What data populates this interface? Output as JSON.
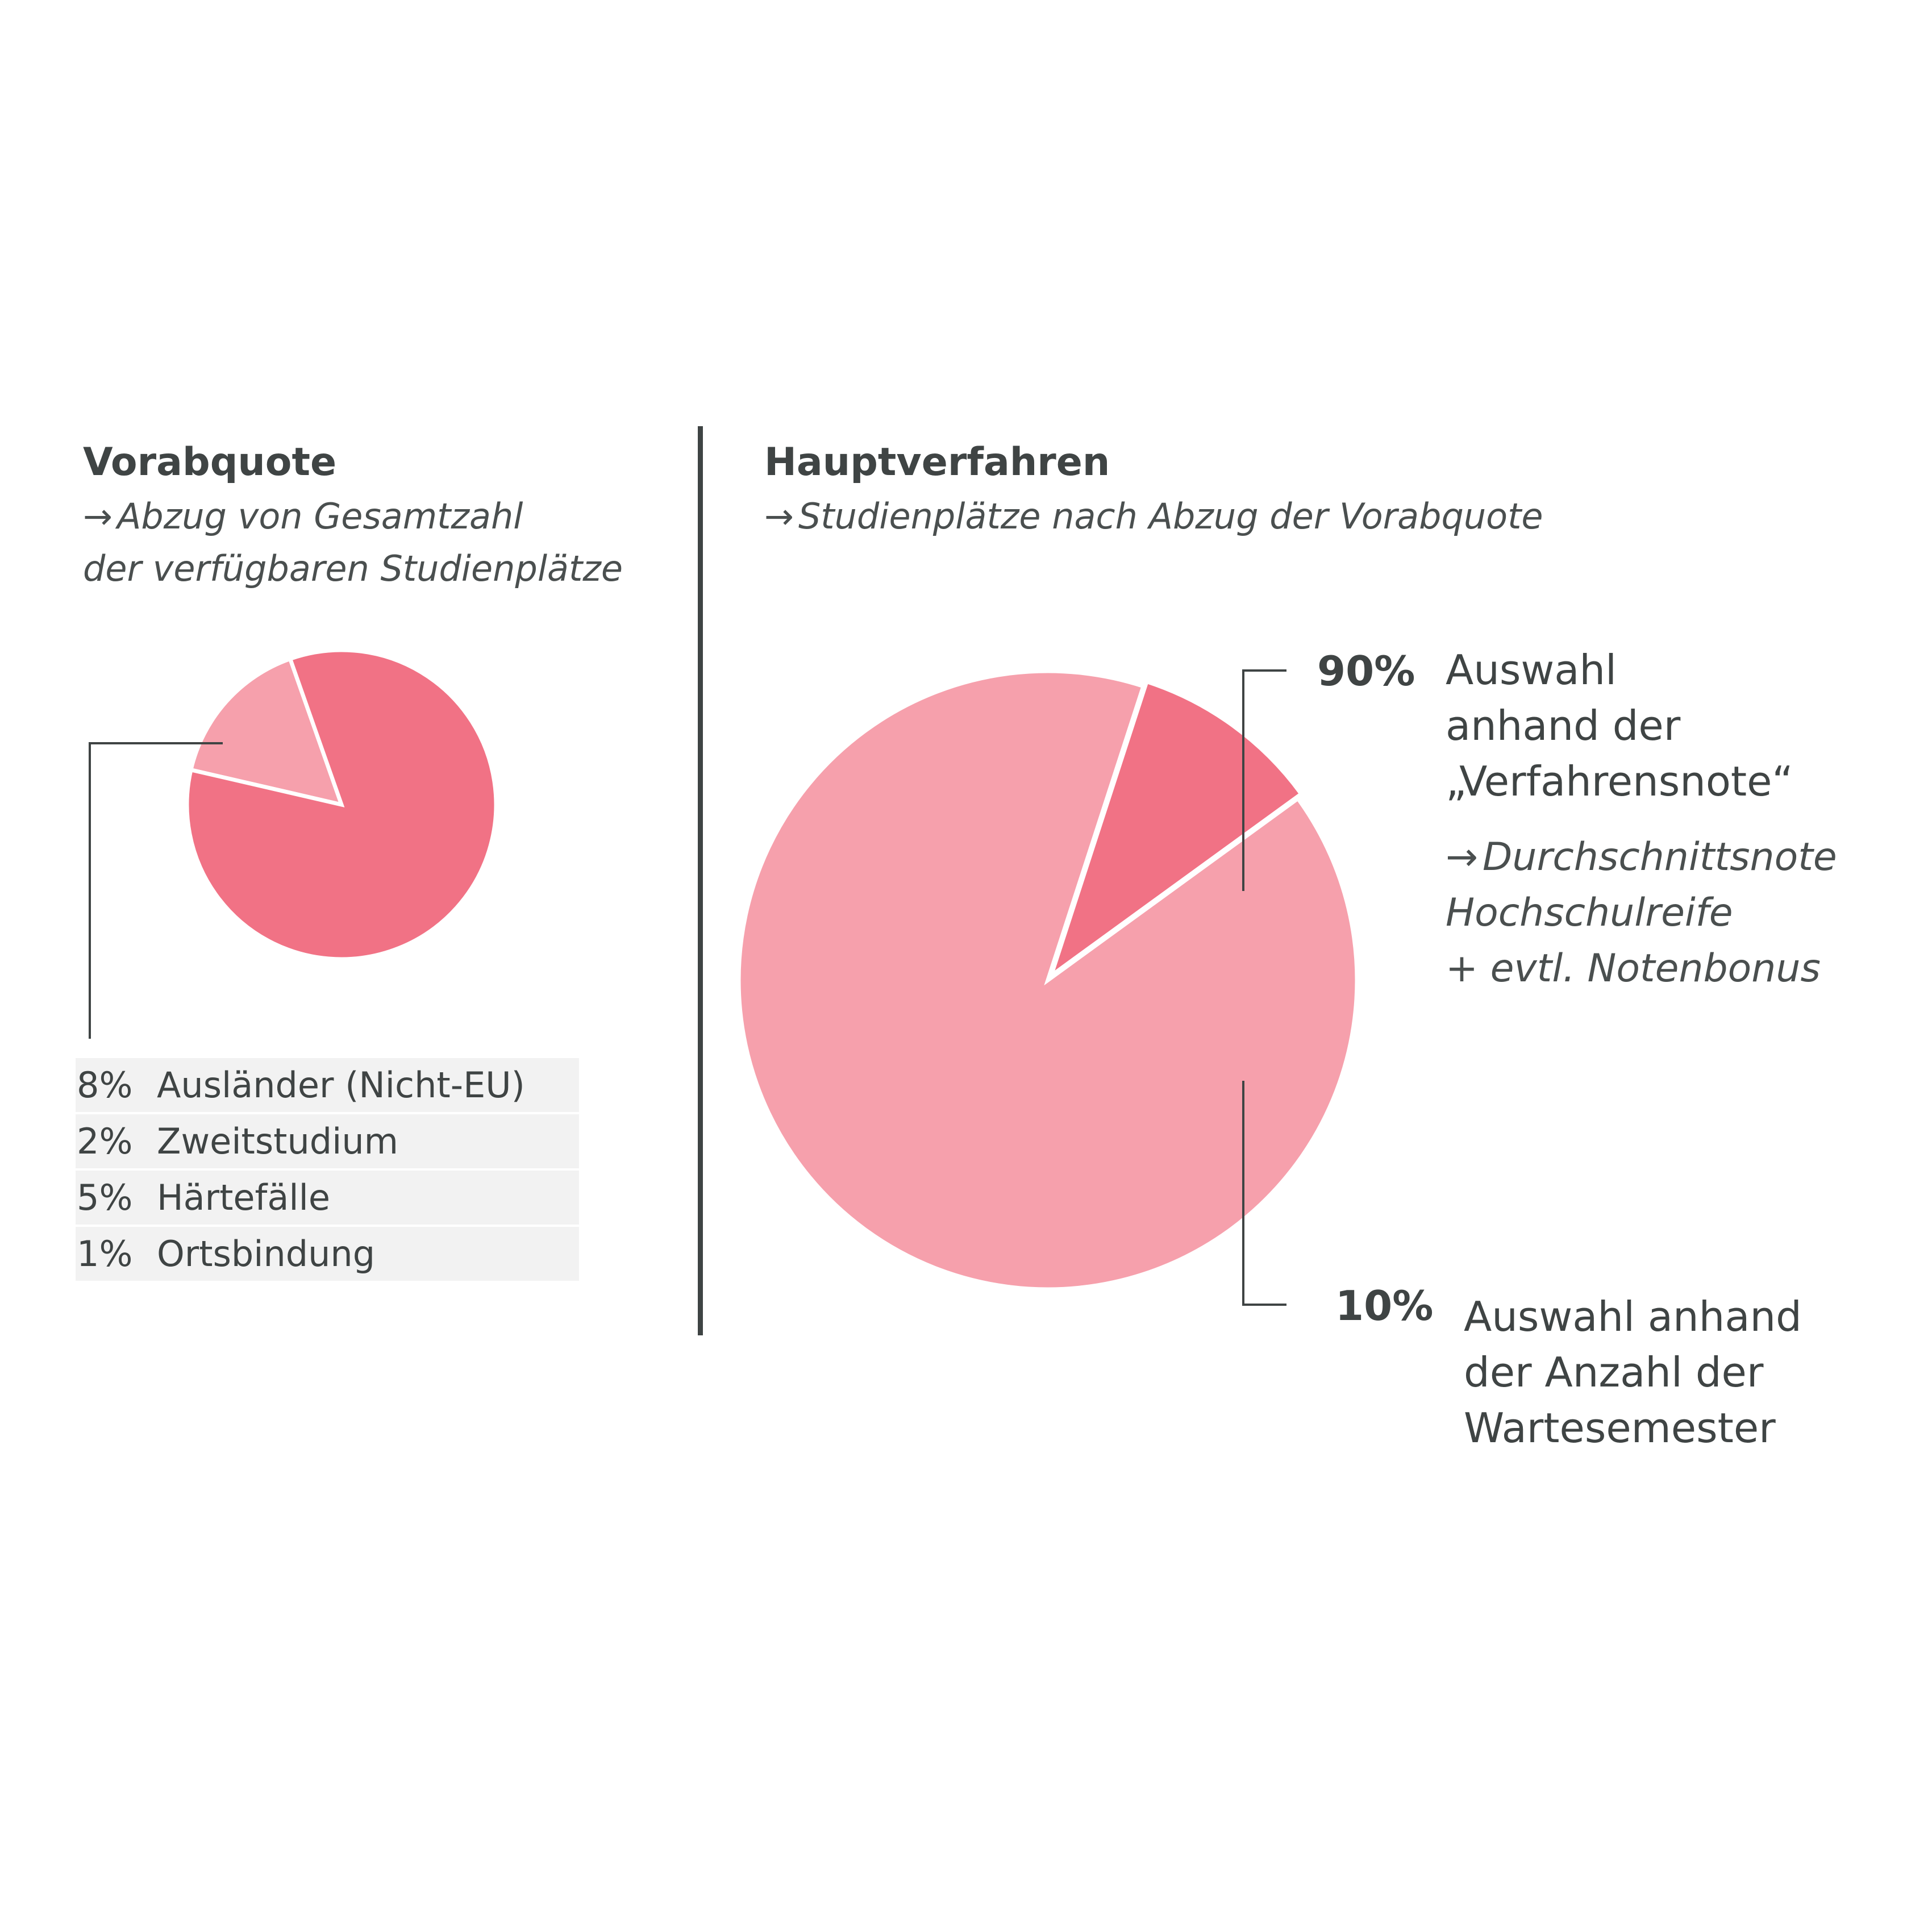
{
  "colors": {
    "dark_pink": "#f17285",
    "light_pink": "#f6a0ac",
    "text": "#3f4444",
    "table_bg": "#f2f2f2"
  },
  "icons": {
    "arrow": "right-arrow-icon"
  },
  "left": {
    "title": "Vorabquote",
    "arrow": "→",
    "subtitle_line1": "Abzug von Gesamtzahl",
    "subtitle_line2": "der verfügbaren Studienplätze",
    "table": [
      {
        "pct": "8%",
        "label": "Ausländer (Nicht-EU)"
      },
      {
        "pct": "2%",
        "label": "Zweitstudium"
      },
      {
        "pct": "5%",
        "label": "Härtefälle"
      },
      {
        "pct": "1%",
        "label": "Ortsbindung"
      }
    ]
  },
  "right": {
    "title": "Hauptverfahren",
    "arrow": "→",
    "subtitle": "Studienplätze nach Abzug der Vorabquote",
    "top_pct": "90%",
    "top_desc": [
      "Auswahl",
      "anhand der",
      "„Verfahrensnote“"
    ],
    "top_sub_arrow": "→",
    "top_sub": [
      "Durchschnittsnote",
      "Hochschulreife",
      "+ evtl. Notenbonus"
    ],
    "bottom_pct": "10%",
    "bottom_desc": [
      "Auswahl anhand",
      "der Anzahl der",
      "Wartesemester"
    ]
  },
  "chart_data": [
    {
      "type": "pie",
      "title": "Vorabquote",
      "slices": [
        {
          "label": "Vorabquote",
          "value": 16,
          "color": "#f6a0ac",
          "exploded": true
        },
        {
          "label": "",
          "value": 84,
          "color": "#f17285"
        }
      ]
    },
    {
      "type": "pie",
      "title": "Hauptverfahren",
      "slices": [
        {
          "label": "Auswahl anhand der „Verfahrensnote“",
          "value": 90,
          "color": "#f6a0ac"
        },
        {
          "label": "Auswahl anhand der Anzahl der Wartesemester",
          "value": 10,
          "color": "#f17285",
          "exploded": true
        }
      ]
    }
  ]
}
